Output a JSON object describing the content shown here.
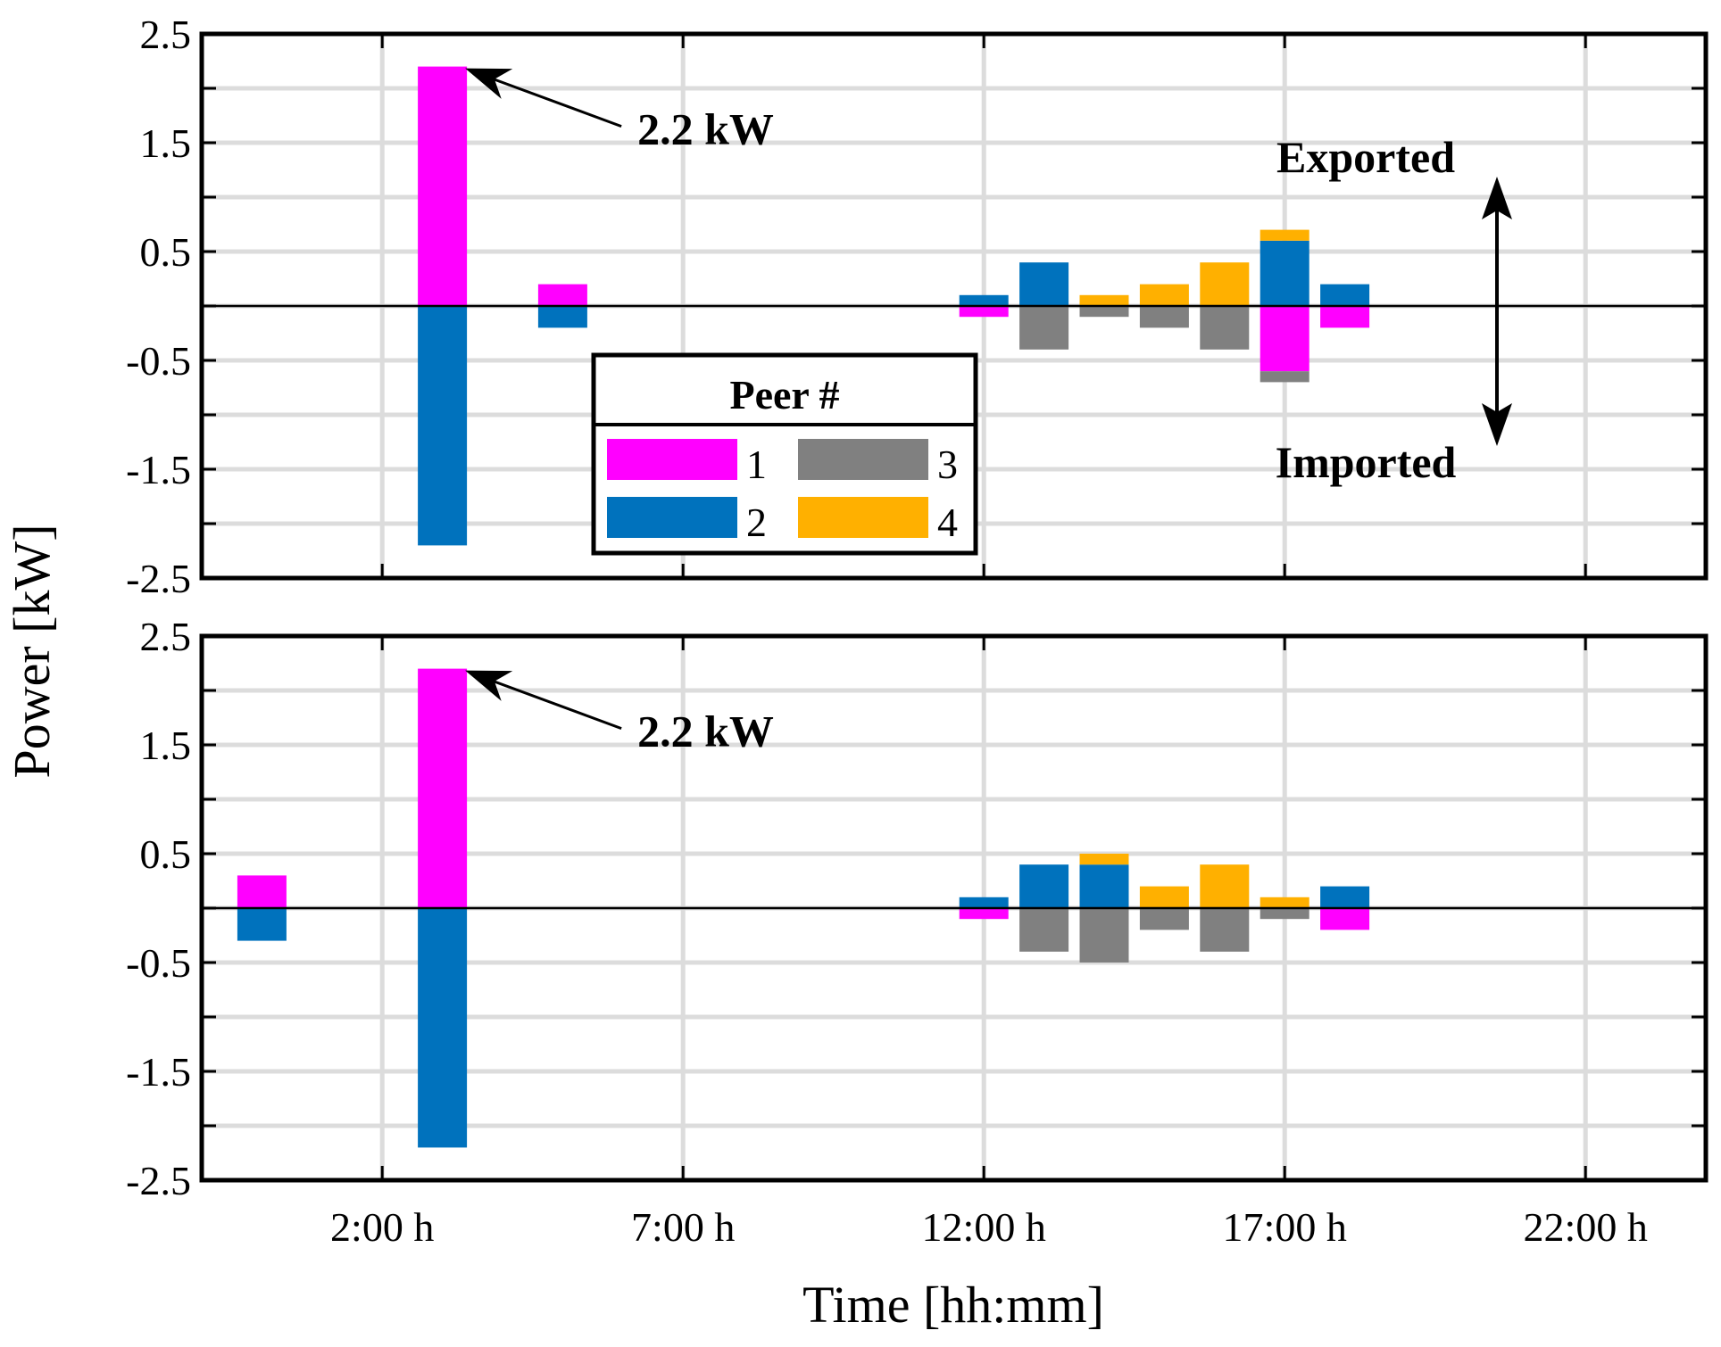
{
  "chart_data": {
    "type": "bar",
    "stacked": true,
    "xlabel": "Time [hh:mm]",
    "ylabel": "Power [kW]",
    "ylim": [
      -2.5,
      2.5
    ],
    "xlim": [
      -1,
      24
    ],
    "yticks": [
      -2.5,
      -1.5,
      -0.5,
      0.5,
      1.5,
      2.5
    ],
    "ytick_labels": [
      "-2.5",
      "-1.5",
      "-0.5",
      "0.5",
      "1.5",
      "2.5"
    ],
    "yminor": [
      -2.0,
      -1.0,
      0.0,
      1.0,
      2.0
    ],
    "xticks": [
      2,
      7,
      12,
      17,
      22
    ],
    "xtick_labels": [
      "2:00 h",
      "7:00 h",
      "12:00 h",
      "17:00 h",
      "22:00 h"
    ],
    "grid": true,
    "legend": {
      "title": "Peer #",
      "placement": "center",
      "entries": [
        {
          "label": "1",
          "color": "#ff00ff"
        },
        {
          "label": "3",
          "color": "#808080"
        },
        {
          "label": "2",
          "color": "#0072bd"
        },
        {
          "label": "4",
          "color": "#ffb000"
        }
      ]
    },
    "series_colors": {
      "1": "#ff00ff",
      "2": "#0072bd",
      "3": "#808080",
      "4": "#ffb000"
    },
    "panels": [
      {
        "name": "top",
        "bars": [
          {
            "hour": 3,
            "positive": [
              {
                "peer": "1",
                "value": 2.2
              }
            ],
            "negative": [
              {
                "peer": "2",
                "value": -2.2
              }
            ]
          },
          {
            "hour": 5,
            "positive": [
              {
                "peer": "1",
                "value": 0.2
              }
            ],
            "negative": [
              {
                "peer": "2",
                "value": -0.2
              }
            ]
          },
          {
            "hour": 12,
            "positive": [
              {
                "peer": "2",
                "value": 0.1
              }
            ],
            "negative": [
              {
                "peer": "1",
                "value": -0.1
              }
            ]
          },
          {
            "hour": 13,
            "positive": [
              {
                "peer": "2",
                "value": 0.4
              }
            ],
            "negative": [
              {
                "peer": "3",
                "value": -0.4
              }
            ]
          },
          {
            "hour": 14,
            "positive": [
              {
                "peer": "4",
                "value": 0.1
              }
            ],
            "negative": [
              {
                "peer": "3",
                "value": -0.1
              }
            ]
          },
          {
            "hour": 15,
            "positive": [
              {
                "peer": "4",
                "value": 0.2
              }
            ],
            "negative": [
              {
                "peer": "3",
                "value": -0.2
              }
            ]
          },
          {
            "hour": 16,
            "positive": [
              {
                "peer": "4",
                "value": 0.4
              }
            ],
            "negative": [
              {
                "peer": "3",
                "value": -0.4
              }
            ]
          },
          {
            "hour": 17,
            "positive": [
              {
                "peer": "2",
                "value": 0.6
              },
              {
                "peer": "4",
                "value": 0.1
              }
            ],
            "negative": [
              {
                "peer": "1",
                "value": -0.6
              },
              {
                "peer": "3",
                "value": -0.1
              }
            ]
          },
          {
            "hour": 18,
            "positive": [
              {
                "peer": "2",
                "value": 0.2
              }
            ],
            "negative": [
              {
                "peer": "1",
                "value": -0.2
              }
            ]
          }
        ],
        "annotations": [
          {
            "text": "2.2 kW",
            "hour": 3,
            "value": 2.2
          }
        ],
        "side_labels": {
          "exported": "Exported",
          "imported": "Imported"
        }
      },
      {
        "name": "bottom",
        "bars": [
          {
            "hour": 0,
            "positive": [
              {
                "peer": "1",
                "value": 0.3
              }
            ],
            "negative": [
              {
                "peer": "2",
                "value": -0.3
              }
            ]
          },
          {
            "hour": 3,
            "positive": [
              {
                "peer": "1",
                "value": 2.2
              }
            ],
            "negative": [
              {
                "peer": "2",
                "value": -2.2
              }
            ]
          },
          {
            "hour": 12,
            "positive": [
              {
                "peer": "2",
                "value": 0.1
              }
            ],
            "negative": [
              {
                "peer": "1",
                "value": -0.1
              }
            ]
          },
          {
            "hour": 13,
            "positive": [
              {
                "peer": "2",
                "value": 0.4
              }
            ],
            "negative": [
              {
                "peer": "3",
                "value": -0.4
              }
            ]
          },
          {
            "hour": 14,
            "positive": [
              {
                "peer": "2",
                "value": 0.4
              },
              {
                "peer": "4",
                "value": 0.1
              }
            ],
            "negative": [
              {
                "peer": "3",
                "value": -0.5
              }
            ]
          },
          {
            "hour": 15,
            "positive": [
              {
                "peer": "4",
                "value": 0.2
              }
            ],
            "negative": [
              {
                "peer": "3",
                "value": -0.2
              }
            ]
          },
          {
            "hour": 16,
            "positive": [
              {
                "peer": "4",
                "value": 0.4
              }
            ],
            "negative": [
              {
                "peer": "3",
                "value": -0.4
              }
            ]
          },
          {
            "hour": 17,
            "positive": [
              {
                "peer": "4",
                "value": 0.1
              }
            ],
            "negative": [
              {
                "peer": "3",
                "value": -0.1
              }
            ]
          },
          {
            "hour": 18,
            "positive": [
              {
                "peer": "2",
                "value": 0.2
              }
            ],
            "negative": [
              {
                "peer": "1",
                "value": -0.2
              }
            ]
          }
        ],
        "annotations": [
          {
            "text": "2.2 kW",
            "hour": 3,
            "value": 2.2
          }
        ]
      }
    ]
  }
}
